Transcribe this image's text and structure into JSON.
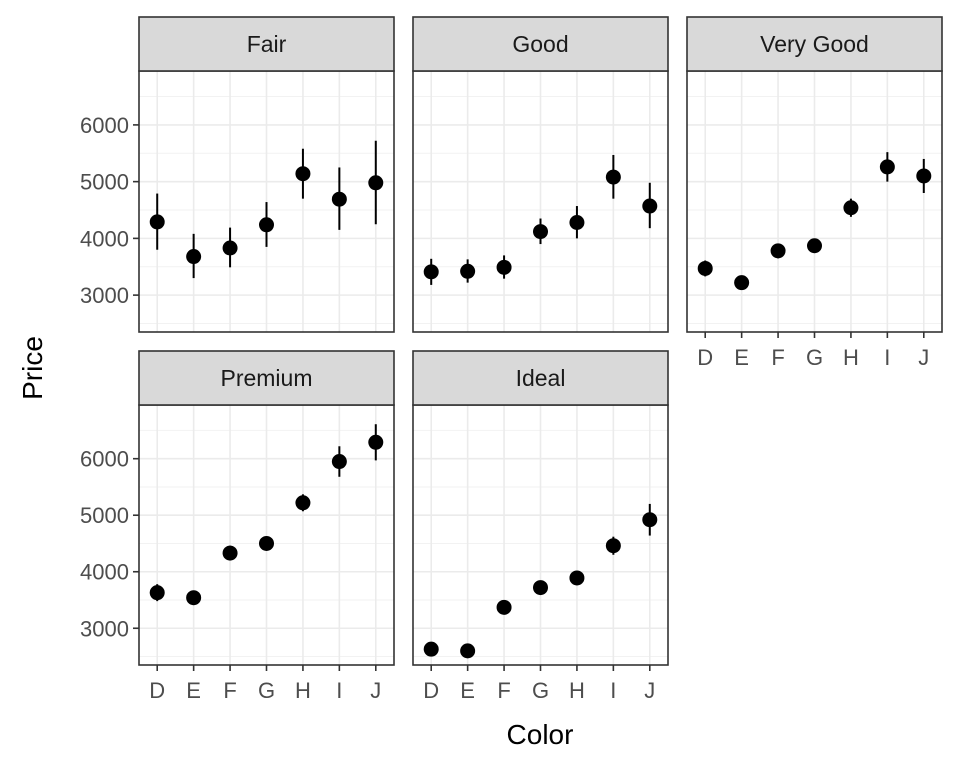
{
  "chart_data": {
    "type": "scatter",
    "subtype": "point-range facets",
    "xlabel": "Color",
    "ylabel": "Price",
    "categories": [
      "D",
      "E",
      "F",
      "G",
      "H",
      "I",
      "J"
    ],
    "y_ticks": [
      3000,
      4000,
      5000,
      6000
    ],
    "ylim": [
      2350,
      6950
    ],
    "grid": true,
    "panels": [
      {
        "name": "Fair",
        "mean": [
          4290,
          3680,
          3830,
          4240,
          5140,
          4690,
          4980
        ],
        "lower": [
          3800,
          3300,
          3490,
          3850,
          4700,
          4150,
          4250
        ],
        "upper": [
          4790,
          4080,
          4190,
          4640,
          5580,
          5250,
          5720
        ]
      },
      {
        "name": "Good",
        "mean": [
          3410,
          3420,
          3490,
          4120,
          4280,
          5080,
          4570
        ],
        "lower": [
          3180,
          3220,
          3290,
          3900,
          4000,
          4700,
          4180
        ],
        "upper": [
          3640,
          3630,
          3700,
          4350,
          4570,
          5470,
          4980
        ]
      },
      {
        "name": "Very Good",
        "mean": [
          3470,
          3220,
          3780,
          3870,
          4540,
          5260,
          5100
        ],
        "lower": [
          3330,
          3120,
          3650,
          3750,
          4380,
          5000,
          4800
        ],
        "upper": [
          3610,
          3320,
          3910,
          3990,
          4700,
          5520,
          5400
        ]
      },
      {
        "name": "Premium",
        "mean": [
          3630,
          3540,
          4330,
          4500,
          5220,
          5950,
          6290
        ],
        "lower": [
          3480,
          3430,
          4200,
          4380,
          5070,
          5680,
          5970
        ],
        "upper": [
          3780,
          3650,
          4460,
          4620,
          5370,
          6220,
          6610
        ]
      },
      {
        "name": "Ideal",
        "mean": [
          2630,
          2600,
          3370,
          3720,
          3890,
          4460,
          4920
        ],
        "lower": [
          2560,
          2530,
          3280,
          3630,
          3790,
          4300,
          4640
        ],
        "upper": [
          2700,
          2670,
          3460,
          3810,
          3990,
          4620,
          5200
        ]
      }
    ]
  }
}
